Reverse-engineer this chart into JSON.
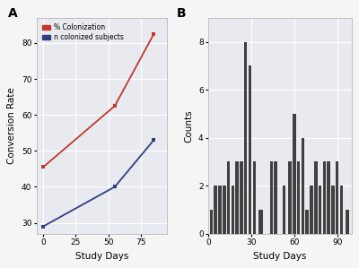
{
  "panel_a": {
    "red_x": [
      0,
      55,
      85
    ],
    "red_y": [
      45.5,
      62.5,
      82.5
    ],
    "blue_x": [
      0,
      55,
      85
    ],
    "blue_y": [
      29,
      40,
      53
    ],
    "red_color": "#c0392b",
    "blue_color": "#2e4080",
    "xlabel": "Study Days",
    "ylabel": "Conversion Rate",
    "legend_labels": [
      "% Colonization",
      "n colonized subjects"
    ],
    "xticks": [
      0,
      25,
      50,
      75
    ],
    "yticks": [
      30,
      40,
      50,
      60,
      70,
      80
    ],
    "xlim": [
      -5,
      95
    ],
    "ylim": [
      27,
      87
    ],
    "panel_label": "A"
  },
  "panel_b": {
    "bar_x": [
      2,
      5,
      8,
      11,
      14,
      17,
      20,
      23,
      26,
      29,
      32,
      36,
      37,
      44,
      47,
      53,
      57,
      60,
      63,
      66,
      69,
      72,
      75,
      78,
      81,
      84,
      87,
      90,
      93,
      97
    ],
    "bar_h": [
      1,
      2,
      2,
      2,
      3,
      2,
      3,
      3,
      8,
      7,
      3,
      1,
      1,
      3,
      3,
      2,
      3,
      5,
      3,
      4,
      1,
      2,
      3,
      2,
      3,
      3,
      2,
      3,
      2,
      1
    ],
    "bar_color": "#404040",
    "xlabel": "Study Days",
    "ylabel": "Counts",
    "xticks": [
      0,
      30,
      60,
      90
    ],
    "yticks": [
      0,
      2,
      4,
      6,
      8
    ],
    "xlim": [
      0,
      100
    ],
    "ylim": [
      0,
      9
    ],
    "panel_label": "B"
  },
  "axes_bg": "#e8eaf0",
  "fig_bg": "#f5f5f5",
  "grid_color": "#ffffff"
}
